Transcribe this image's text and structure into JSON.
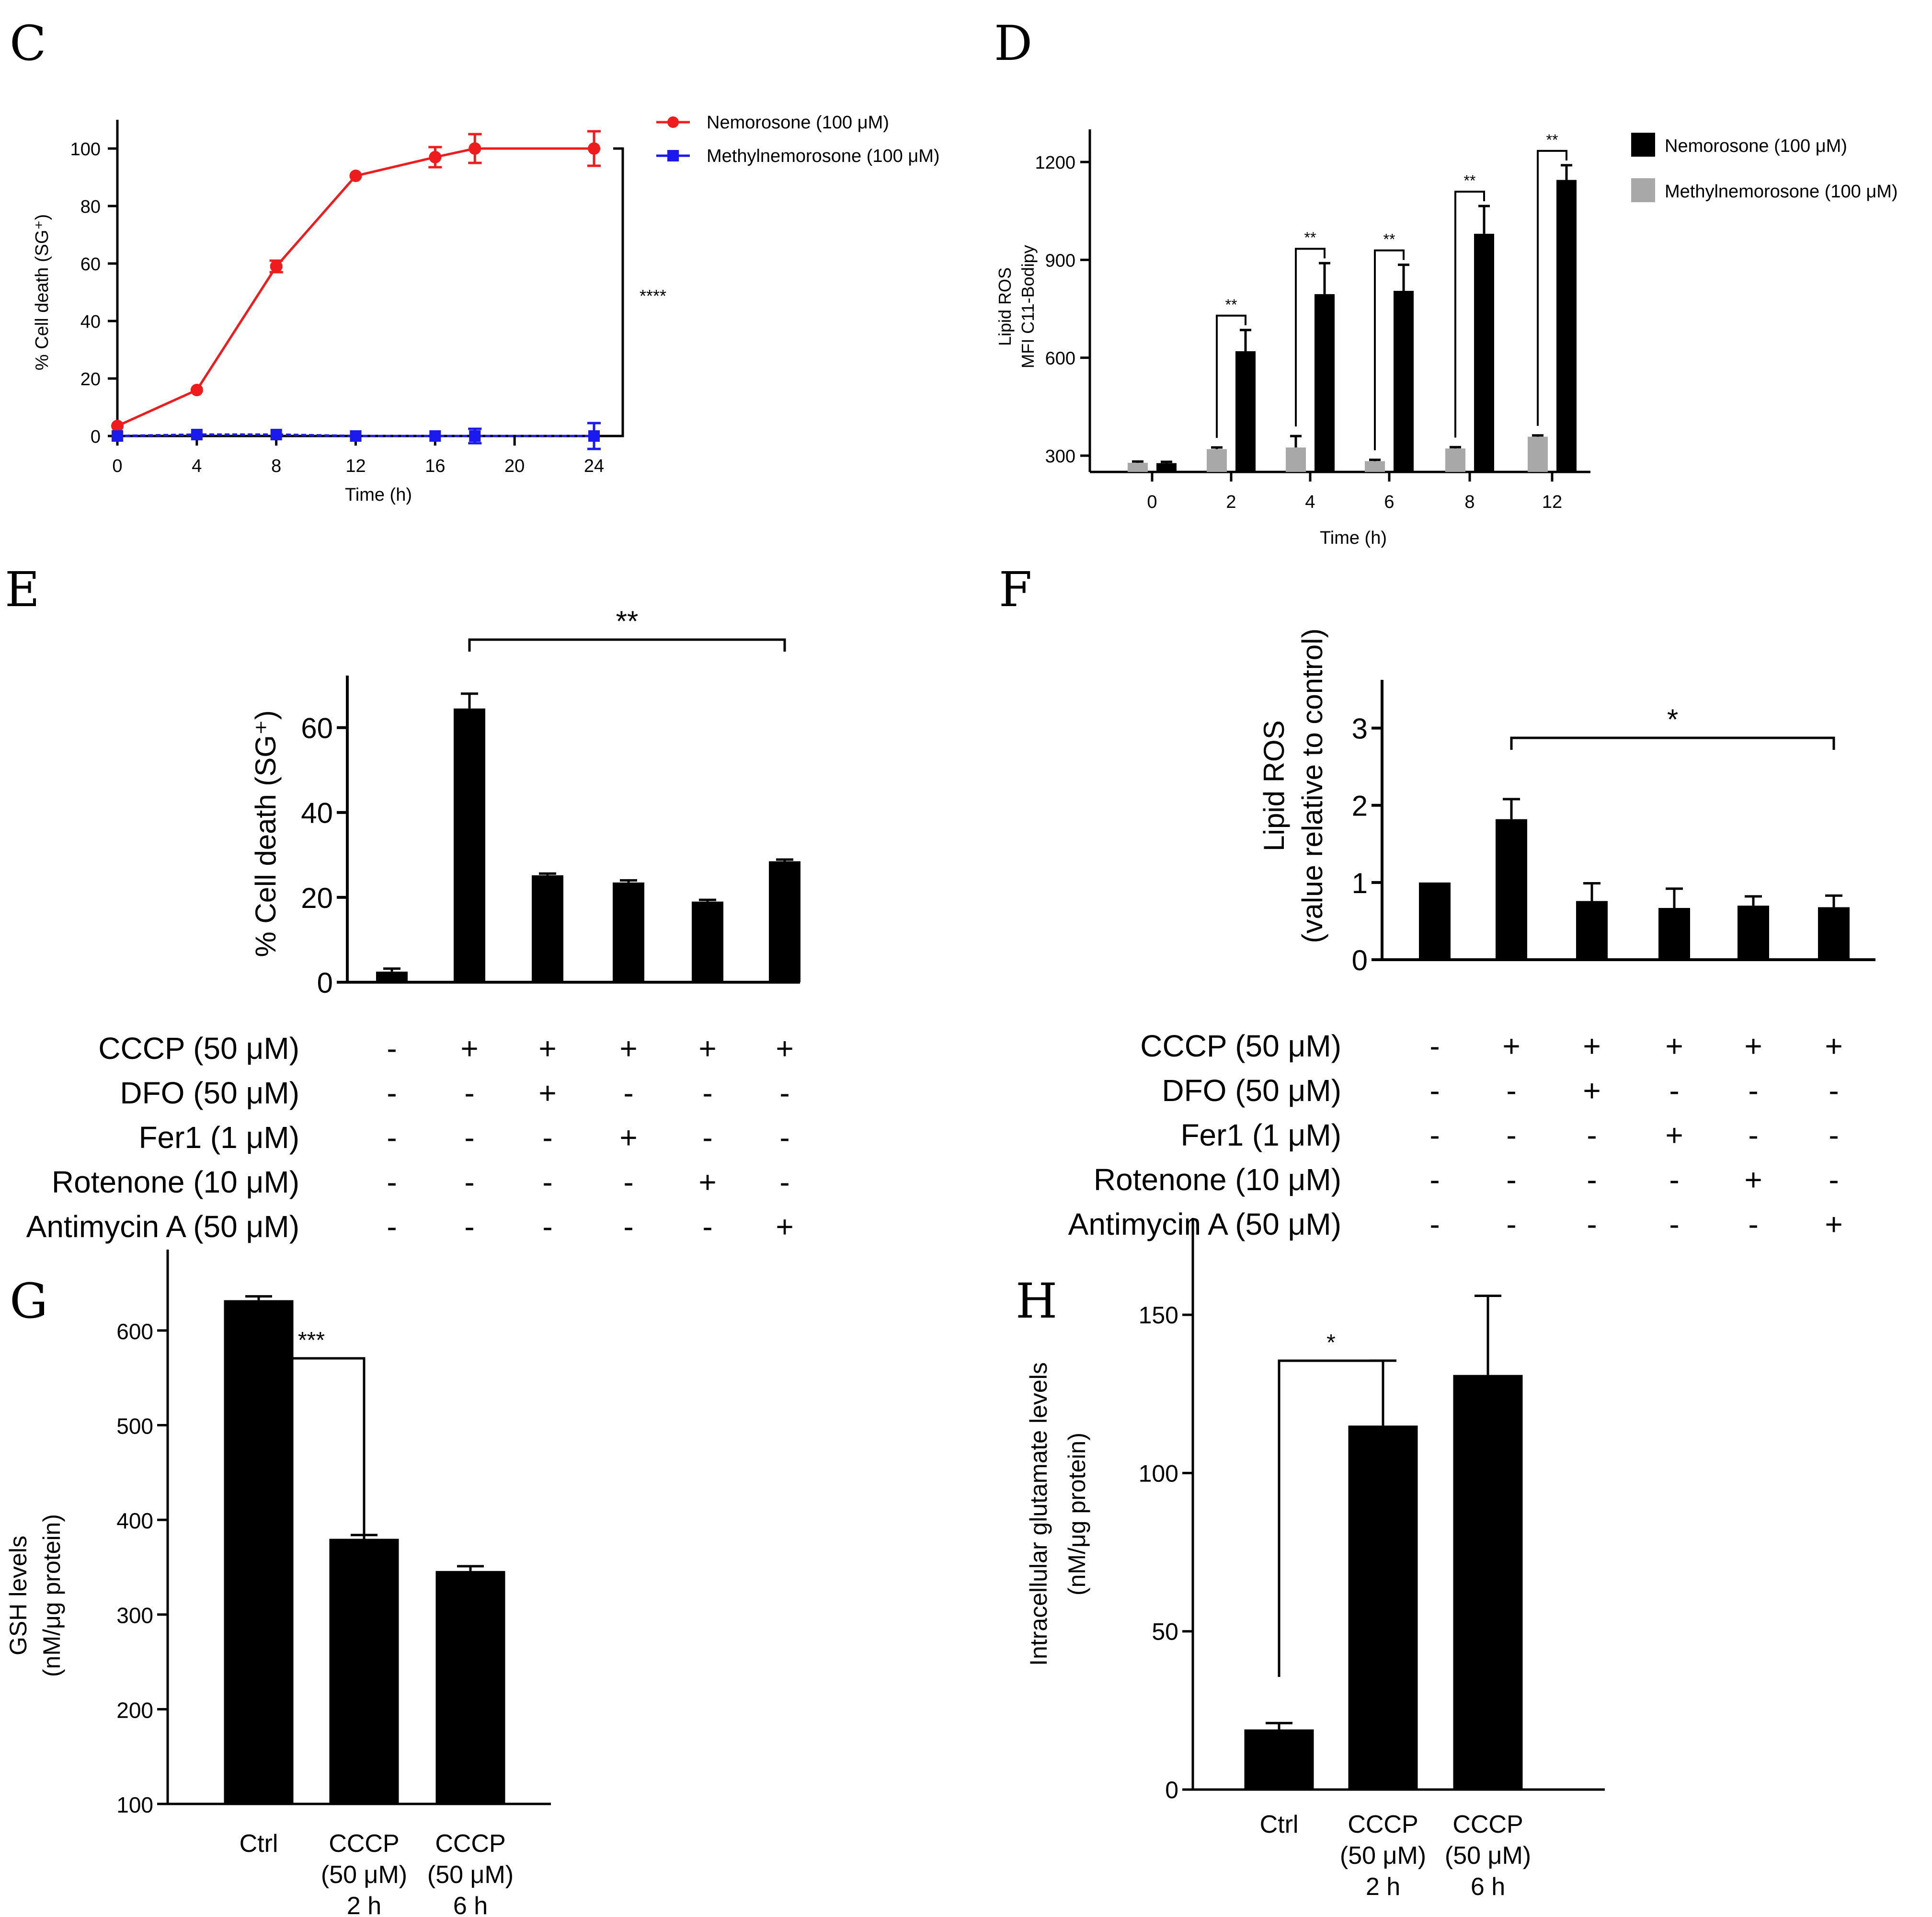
{
  "figure": {
    "colors": {
      "nemorosone": "#ee1c1c",
      "methylnemorosone": "#1a1aee",
      "black_bar": "#000000",
      "grey_bar": "#a8a8a8"
    }
  },
  "chart_data": [
    {
      "panel": "C",
      "type": "line",
      "xlabel": "Time (h)",
      "ylabel": "% Cell death (SG⁺)",
      "xlim": [
        0,
        24
      ],
      "ylim": [
        0,
        100
      ],
      "xticks": [
        0,
        4,
        8,
        12,
        16,
        20,
        24
      ],
      "yticks": [
        0,
        20,
        40,
        60,
        80,
        100
      ],
      "legend_position": "top-right",
      "significance": "****",
      "series": [
        {
          "name": "Nemorosone (100 μM)",
          "color": "#ee1c1c",
          "marker": "circle",
          "x": [
            0,
            4,
            8,
            12,
            16,
            18,
            24
          ],
          "y": [
            3.5,
            16,
            59,
            90.5,
            97,
            100,
            100
          ],
          "err": [
            0,
            0,
            2,
            0,
            3.5,
            5,
            6
          ]
        },
        {
          "name": "Methylnemorosone (100 μM)",
          "color": "#1a1aee",
          "marker": "square",
          "x": [
            0,
            4,
            8,
            12,
            16,
            18,
            24
          ],
          "y": [
            0,
            0.5,
            0.5,
            0,
            0,
            0,
            0
          ],
          "err": [
            0,
            0,
            0,
            0,
            0,
            2.5,
            4.5
          ]
        }
      ]
    },
    {
      "panel": "D",
      "type": "bar",
      "xlabel": "Time (h)",
      "ylabel_lines": [
        "Lipid ROS",
        "MFI C11-Bodipy"
      ],
      "categories": [
        "0",
        "2",
        "4",
        "6",
        "8",
        "12"
      ],
      "ylim": [
        250,
        1300
      ],
      "yticks": [
        300,
        600,
        900,
        1200
      ],
      "legend_position": "top-right",
      "significance": [
        "**",
        "**",
        "**",
        "**",
        "**"
      ],
      "series": [
        {
          "name": "Methylnemorosone (100 μM)",
          "color": "#a8a8a8",
          "values": [
            278,
            320,
            325,
            283,
            322,
            358
          ],
          "err": [
            4,
            5,
            35,
            4,
            4,
            4
          ]
        },
        {
          "name": "Nemorosone (100 μM)",
          "color": "#000000",
          "values": [
            277,
            620,
            795,
            805,
            980,
            1145
          ],
          "err": [
            4,
            65,
            95,
            80,
            85,
            45
          ]
        }
      ]
    },
    {
      "panel": "E",
      "type": "bar",
      "ylabel": "% Cell death (SG⁺)",
      "ylim": [
        0,
        70
      ],
      "yticks": [
        0,
        20,
        40,
        60
      ],
      "values": [
        2.5,
        64.5,
        25.2,
        23.5,
        19,
        28.5
      ],
      "err": [
        0.7,
        3.5,
        0.4,
        0.5,
        0.4,
        0.4
      ],
      "significance": "**",
      "treatment_rows": [
        {
          "label": "CCCP (50 μM)",
          "marks": [
            "-",
            "+",
            "+",
            "+",
            "+",
            "+"
          ]
        },
        {
          "label": "DFO (50 μM)",
          "marks": [
            "-",
            "-",
            "+",
            "-",
            "-",
            "-"
          ]
        },
        {
          "label": "Fer1 (1 μM)",
          "marks": [
            "-",
            "-",
            "-",
            "+",
            "-",
            "-"
          ]
        },
        {
          "label": "Rotenone (10 μM)",
          "marks": [
            "-",
            "-",
            "-",
            "-",
            "+",
            "-"
          ]
        },
        {
          "label": "Antimycin A (50 μM)",
          "marks": [
            "-",
            "-",
            "-",
            "-",
            "-",
            "+"
          ]
        }
      ]
    },
    {
      "panel": "F",
      "type": "bar",
      "ylabel_lines": [
        "Lipid ROS",
        "(value relative to control)"
      ],
      "ylim": [
        0,
        3.5
      ],
      "yticks": [
        0,
        1,
        2,
        3
      ],
      "values": [
        1.0,
        1.82,
        0.76,
        0.67,
        0.7,
        0.68
      ],
      "err": [
        0,
        0.26,
        0.23,
        0.25,
        0.12,
        0.15
      ],
      "significance": "*",
      "treatment_rows": [
        {
          "label": "CCCP (50 μM)",
          "marks": [
            "-",
            "+",
            "+",
            "+",
            "+",
            "+"
          ]
        },
        {
          "label": "DFO (50 μM)",
          "marks": [
            "-",
            "-",
            "+",
            "-",
            "-",
            "-"
          ]
        },
        {
          "label": "Fer1 (1 μM)",
          "marks": [
            "-",
            "-",
            "-",
            "+",
            "-",
            "-"
          ]
        },
        {
          "label": "Rotenone (10 μM)",
          "marks": [
            "-",
            "-",
            "-",
            "-",
            "+",
            "-"
          ]
        },
        {
          "label": "Antimycin A (50 μM)",
          "marks": [
            "-",
            "-",
            "-",
            "-",
            "-",
            "+"
          ]
        }
      ]
    },
    {
      "panel": "G",
      "type": "bar",
      "ylabel_lines": [
        "GSH levels",
        "(nM/μg protein)"
      ],
      "ylim": [
        100,
        650
      ],
      "yticks": [
        100,
        200,
        300,
        400,
        500,
        600
      ],
      "categories": [
        [
          "Ctrl"
        ],
        [
          "CCCP",
          "(50 μM)",
          "2 h"
        ],
        [
          "CCCP",
          "(50 μM)",
          "6 h"
        ]
      ],
      "values": [
        632,
        380,
        346
      ],
      "err": [
        4,
        4,
        5
      ],
      "significance": "***"
    },
    {
      "panel": "H",
      "type": "bar",
      "ylabel_lines": [
        "Intracellular glutamate levels",
        "(nM/μg protein)"
      ],
      "ylim": [
        0,
        170
      ],
      "yticks": [
        0,
        50,
        100,
        150
      ],
      "categories": [
        [
          "Ctrl"
        ],
        [
          "CCCP",
          "(50 μM)",
          "2 h"
        ],
        [
          "CCCP",
          "(50 μM)",
          "6 h"
        ]
      ],
      "values": [
        19,
        115,
        131
      ],
      "err": [
        2,
        20.5,
        25
      ],
      "significance": "*"
    }
  ]
}
